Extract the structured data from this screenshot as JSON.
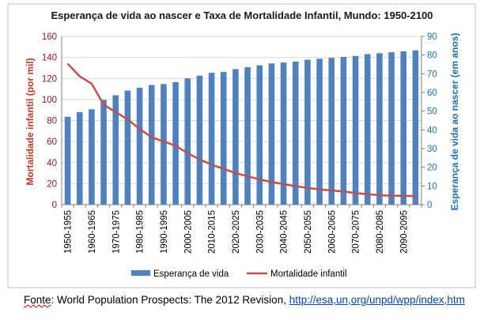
{
  "chart_data": {
    "type": "bar+line",
    "title": "Esperança de vida ao nascer e Taxa de Mortalidade Infantil, Mundo: 1950-2100",
    "x_categories": [
      "1950-1955",
      "1955-1960",
      "1960-1965",
      "1965-1970",
      "1970-1975",
      "1975-1980",
      "1980-1985",
      "1985-1990",
      "1990-1995",
      "1995-2000",
      "2000-2005",
      "2005-2010",
      "2010-2015",
      "2015-2020",
      "2020-2025",
      "2025-2030",
      "2030-2035",
      "2035-2040",
      "2040-2045",
      "2045-2050",
      "2050-2055",
      "2055-2060",
      "2060-2065",
      "2065-2070",
      "2070-2075",
      "2075-2080",
      "2080-2085",
      "2085-2090",
      "2090-2095",
      "2095-2100"
    ],
    "x_tick_labels": [
      "1950-1955",
      "1960-1965",
      "1970-1975",
      "1980-1985",
      "1990-1995",
      "2000-2005",
      "2010-2015",
      "2020-2025",
      "2030-2035",
      "2040-2045",
      "2050-2055",
      "2060-2065",
      "2070-2075",
      "2080-2085",
      "2090-2095"
    ],
    "left_axis": {
      "label": "Mortalidade infantil (por mil)",
      "ylim": [
        0,
        160
      ],
      "ticks": [
        0,
        20,
        40,
        60,
        80,
        100,
        120,
        140,
        160
      ],
      "color": "#c0504d"
    },
    "right_axis": {
      "label": "Esperança de vida ao nascer (em anos)",
      "ylim": [
        0,
        90
      ],
      "ticks": [
        0,
        10,
        20,
        30,
        40,
        50,
        60,
        70,
        80,
        90
      ],
      "color": "#1f6eb5"
    },
    "series": [
      {
        "name": "Esperança de vida",
        "kind": "bar",
        "axis": "right",
        "color": "#4f81bd",
        "values": [
          47,
          49.5,
          51,
          56,
          58.5,
          61,
          62.5,
          64,
          64.5,
          65.5,
          67.5,
          69,
          70.5,
          71,
          72.5,
          73.5,
          74.5,
          75.5,
          76,
          76.5,
          77.5,
          78,
          78.5,
          79,
          79.5,
          80.5,
          81,
          81.5,
          82,
          82.5
        ]
      },
      {
        "name": "Mortalidade infantil",
        "kind": "line",
        "axis": "left",
        "color": "#c0504d",
        "values": [
          134,
          122,
          115,
          95,
          88,
          81,
          72,
          64,
          60,
          56,
          49,
          43,
          38,
          34,
          30,
          27,
          24,
          21.5,
          19.5,
          17.5,
          16,
          14.5,
          13.5,
          12.5,
          11,
          10,
          9,
          8.5,
          8.5,
          8
        ]
      }
    ],
    "legend_position": "bottom",
    "gridlines": true
  },
  "footer": {
    "prefix": "Fonte",
    "text": ": World Population Prospects: The 2012 Revision, ",
    "link": "http://esa,un,org/unpd/wpp/index,htm"
  }
}
